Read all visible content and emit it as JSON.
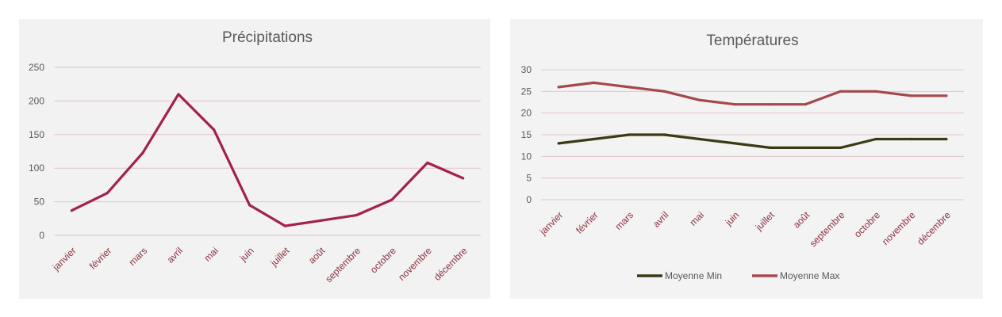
{
  "chart_data": [
    {
      "type": "line",
      "title": "Précipitations",
      "categories": [
        "janvier",
        "février",
        "mars",
        "avril",
        "mai",
        "juin",
        "juillet",
        "août",
        "septembre",
        "octobre",
        "novembre",
        "décembre"
      ],
      "yticks": [
        "0",
        "50",
        "100",
        "150",
        "200",
        "250"
      ],
      "ylim": [
        0,
        250
      ],
      "grid": true,
      "series": [
        {
          "values": [
            37,
            63,
            123,
            210,
            157,
            45,
            14,
            22,
            30,
            53,
            108,
            85
          ],
          "color": "#a3204f"
        }
      ]
    },
    {
      "type": "line",
      "title": "Températures",
      "categories": [
        "janvier",
        "février",
        "mars",
        "avril",
        "mai",
        "juin",
        "juillet",
        "août",
        "septembre",
        "octobre",
        "novembre",
        "décembre"
      ],
      "yticks": [
        "0",
        "5",
        "10",
        "15",
        "20",
        "25",
        "30"
      ],
      "ylim": [
        0,
        30
      ],
      "grid": true,
      "legend": "bottom",
      "series": [
        {
          "name": "Moyenne Min",
          "values": [
            13,
            14,
            15,
            15,
            14,
            13,
            12,
            12,
            12,
            14,
            14,
            14
          ],
          "color": "#3b3a12"
        },
        {
          "name": "Moyenne Max",
          "values": [
            26,
            27,
            26,
            25,
            23,
            22,
            22,
            22,
            25,
            25,
            24,
            24
          ],
          "color": "#a5484d"
        }
      ]
    }
  ]
}
